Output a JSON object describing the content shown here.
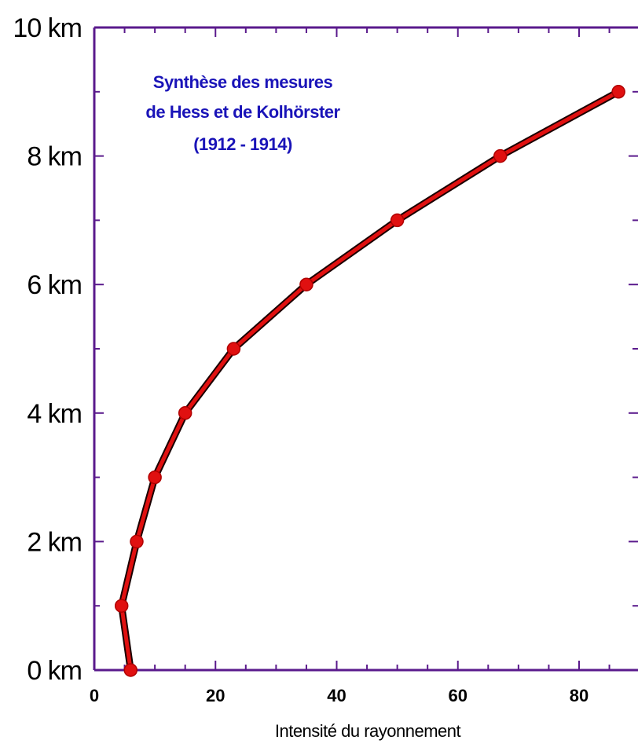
{
  "chart_data": {
    "type": "line",
    "title_lines": [
      "Synthèse des mesures",
      "de Hess et de Kolhörster",
      "(1912 - 1914)"
    ],
    "xlabel": "Intensité du rayonnement",
    "ylabel": "",
    "xlim": [
      0,
      86
    ],
    "ylim": [
      0,
      10
    ],
    "x_ticks": [
      0,
      20,
      40,
      60,
      80
    ],
    "x_tick_labels": [
      "0",
      "20",
      "40",
      "60",
      "80"
    ],
    "y_ticks": [
      0,
      2,
      4,
      6,
      8,
      10
    ],
    "y_tick_labels": [
      "0 km",
      "2 km",
      "4 km",
      "6 km",
      "8 km",
      "10 km"
    ],
    "grid": false,
    "series": [
      {
        "x": [
          6,
          4.5,
          7,
          10,
          15,
          23,
          35,
          50,
          67,
          86.5
        ],
        "y": [
          0,
          1,
          2,
          3,
          4,
          5,
          6,
          7,
          8,
          9
        ]
      }
    ],
    "colors": {
      "line": "#e01010",
      "line_outline": "#1a0000",
      "marker": "#e01010",
      "frame": "#5a1a8c",
      "title": "#1a14b8",
      "text": "#000000"
    }
  }
}
